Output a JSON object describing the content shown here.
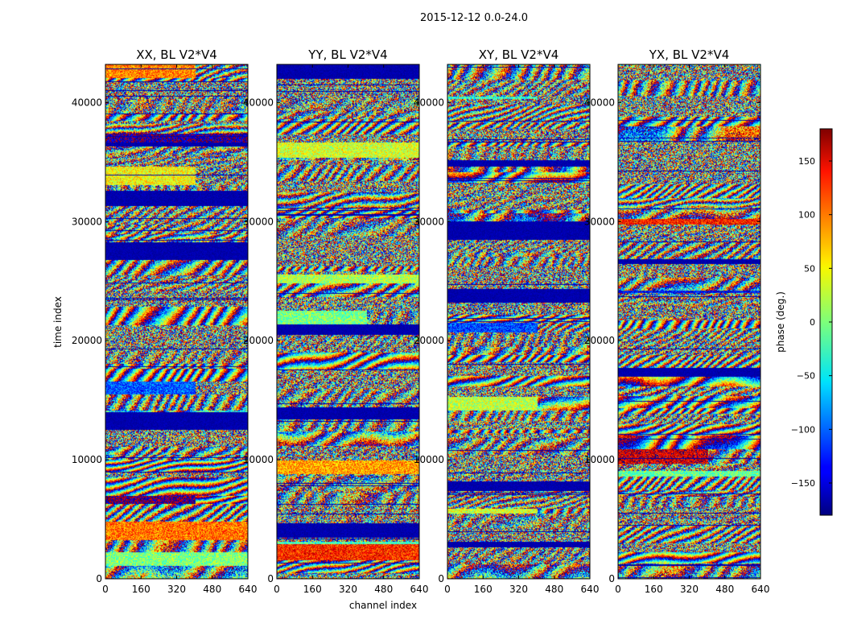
{
  "chart_data": {
    "type": "heatmap",
    "suptitle": "2015-12-12 0.0-24.0",
    "xlabel": "channel index",
    "ylabel": "time index",
    "xlim": [
      0,
      640
    ],
    "ylim": [
      0,
      43200
    ],
    "xticks": [
      0,
      160,
      320,
      480,
      640
    ],
    "yticks": [
      0,
      10000,
      20000,
      30000,
      40000
    ],
    "colorbar": {
      "label": "phase (deg.)",
      "range": [
        -180,
        180
      ],
      "ticks": [
        -150,
        -100,
        -50,
        0,
        50,
        100,
        150
      ],
      "tick_labels": [
        "−150",
        "−100",
        "−50",
        "0",
        "50",
        "100",
        "150"
      ],
      "colormap": "jet"
    },
    "panels": [
      {
        "title": "XX, BL V2*V4"
      },
      {
        "title": "YY, BL V2*V4"
      },
      {
        "title": "XY, BL V2*V4"
      },
      {
        "title": "YX, BL V2*V4"
      }
    ]
  }
}
